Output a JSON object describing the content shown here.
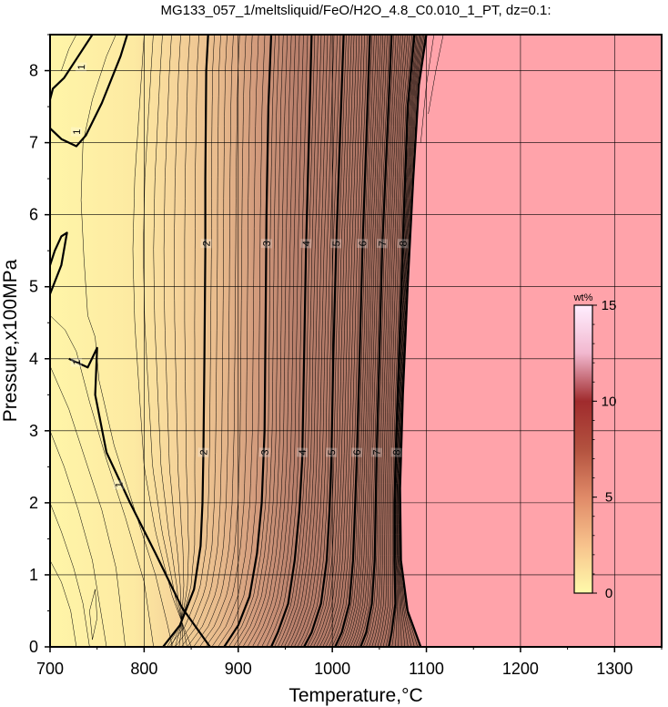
{
  "chart_data": {
    "type": "contour",
    "title": "MG133_057_1/meltsliquid/FeO/H2O_4.8_C0.010_1_PT, dz=0.1:",
    "xlabel": "Temperature,°C",
    "ylabel": "Pressure,x100MPa",
    "xlim": [
      700,
      1350
    ],
    "ylim": [
      0,
      8.5
    ],
    "x_ticks": [
      700,
      800,
      900,
      1000,
      1100,
      1200,
      1300
    ],
    "y_ticks": [
      0,
      1,
      2,
      3,
      4,
      5,
      6,
      7,
      8
    ],
    "grid": true,
    "no_melt_region_color": "#ffa3aa",
    "colorbar": {
      "unit": "wt%",
      "range": [
        0,
        15
      ],
      "ticks": [
        0,
        5,
        10,
        15
      ],
      "colors": [
        "#fffbab",
        "#f7c28c",
        "#e08a68",
        "#b3523f",
        "#a02b2d",
        "#f2b8cf",
        "#ffeeff"
      ]
    },
    "contour_interval": 0.1,
    "labeled_contours": [
      {
        "label": "1",
        "points": [
          [
            745,
            8.5
          ],
          [
            730,
            8.2
          ],
          [
            715,
            7.9
          ],
          [
            703,
            7.75
          ],
          [
            700,
            7.6
          ],
          [
            700,
            7.2
          ],
          [
            712,
            7.05
          ],
          [
            728,
            6.95
          ],
          [
            738,
            7.1
          ],
          [
            755,
            7.55
          ],
          [
            775,
            8.2
          ],
          [
            782,
            8.5
          ]
        ]
      },
      {
        "label": "1",
        "points": [
          [
            700,
            4.9
          ],
          [
            712,
            5.3
          ],
          [
            718,
            5.75
          ],
          [
            712,
            5.7
          ],
          [
            705,
            5.5
          ],
          [
            700,
            5.3
          ]
        ]
      },
      {
        "label": "1",
        "points": [
          [
            720,
            4.0
          ],
          [
            740,
            3.88
          ],
          [
            750,
            4.15
          ],
          [
            748,
            3.5
          ],
          [
            760,
            2.7
          ],
          [
            785,
            2.0
          ],
          [
            812,
            1.3
          ],
          [
            840,
            0.55
          ],
          [
            870,
            0.0
          ]
        ]
      },
      {
        "label": "2",
        "points": [
          [
            868,
            8.5
          ],
          [
            866,
            8.0
          ],
          [
            865,
            6.5
          ],
          [
            865,
            5.5
          ],
          [
            864,
            4.0
          ],
          [
            863,
            2.7
          ],
          [
            862,
            2.0
          ],
          [
            860,
            1.4
          ],
          [
            853,
            0.8
          ],
          [
            838,
            0.3
          ],
          [
            820,
            0.0
          ]
        ]
      },
      {
        "label": "3",
        "points": [
          [
            935,
            8.5
          ],
          [
            932,
            7.5
          ],
          [
            930,
            6.0
          ],
          [
            929,
            4.5
          ],
          [
            928,
            3.0
          ],
          [
            925,
            2.0
          ],
          [
            920,
            1.3
          ],
          [
            912,
            0.7
          ],
          [
            900,
            0.3
          ],
          [
            885,
            0.0
          ]
        ]
      },
      {
        "label": "4",
        "points": [
          [
            978,
            8.5
          ],
          [
            975,
            7.0
          ],
          [
            972,
            5.5
          ],
          [
            970,
            4.0
          ],
          [
            968,
            2.6
          ],
          [
            965,
            1.9
          ],
          [
            960,
            1.2
          ],
          [
            953,
            0.6
          ],
          [
            942,
            0.2
          ],
          [
            935,
            0.0
          ]
        ]
      },
      {
        "label": "5",
        "points": [
          [
            1012,
            8.5
          ],
          [
            1008,
            7.0
          ],
          [
            1004,
            5.5
          ],
          [
            1001,
            4.0
          ],
          [
            999,
            2.6
          ],
          [
            997,
            1.9
          ],
          [
            994,
            1.2
          ],
          [
            988,
            0.6
          ],
          [
            978,
            0.2
          ],
          [
            970,
            0.0
          ]
        ]
      },
      {
        "label": "6",
        "points": [
          [
            1040,
            8.5
          ],
          [
            1036,
            7.0
          ],
          [
            1032,
            5.5
          ],
          [
            1029,
            4.0
          ],
          [
            1026,
            2.6
          ],
          [
            1024,
            1.9
          ],
          [
            1022,
            1.2
          ],
          [
            1018,
            0.6
          ],
          [
            1010,
            0.2
          ],
          [
            1003,
            0.0
          ]
        ]
      },
      {
        "label": "7",
        "points": [
          [
            1063,
            8.5
          ],
          [
            1058,
            7.0
          ],
          [
            1053,
            5.5
          ],
          [
            1050,
            4.0
          ],
          [
            1047,
            2.6
          ],
          [
            1046,
            1.9
          ],
          [
            1045,
            1.2
          ],
          [
            1042,
            0.6
          ],
          [
            1036,
            0.2
          ],
          [
            1030,
            0.0
          ]
        ]
      },
      {
        "label": "8",
        "points": [
          [
            1087,
            8.5
          ],
          [
            1080,
            7.5
          ],
          [
            1076,
            6.0
          ],
          [
            1072,
            4.5
          ],
          [
            1068,
            3.0
          ],
          [
            1066,
            2.0
          ],
          [
            1066,
            1.2
          ],
          [
            1067,
            0.6
          ],
          [
            1063,
            0.2
          ],
          [
            1060,
            0.0
          ]
        ]
      },
      {
        "label": "",
        "points": [
          [
            1100,
            8.5
          ],
          [
            1092,
            7.8
          ],
          [
            1086,
            6.5
          ],
          [
            1080,
            5.0
          ],
          [
            1075,
            3.5
          ],
          [
            1072,
            2.2
          ],
          [
            1073,
            1.2
          ],
          [
            1080,
            0.5
          ],
          [
            1094,
            0.0
          ]
        ]
      }
    ],
    "contour_label_positions": [
      {
        "label": "1",
        "x": 733,
        "y": 8.05
      },
      {
        "label": "1",
        "x": 728,
        "y": 7.15
      },
      {
        "label": "1",
        "x": 728,
        "y": 3.95
      },
      {
        "label": "1",
        "x": 773,
        "y": 2.25
      },
      {
        "label": "2",
        "x": 866,
        "y": 5.6
      },
      {
        "label": "2",
        "x": 863,
        "y": 2.7
      },
      {
        "label": "3",
        "x": 930,
        "y": 5.6
      },
      {
        "label": "3",
        "x": 928,
        "y": 2.7
      },
      {
        "label": "4",
        "x": 972,
        "y": 5.6
      },
      {
        "label": "4",
        "x": 968,
        "y": 2.7
      },
      {
        "label": "5",
        "x": 1004,
        "y": 5.6
      },
      {
        "label": "5",
        "x": 999,
        "y": 2.7
      },
      {
        "label": "6",
        "x": 1032,
        "y": 5.6
      },
      {
        "label": "6",
        "x": 1026,
        "y": 2.7
      },
      {
        "label": "7",
        "x": 1053,
        "y": 5.6
      },
      {
        "label": "7",
        "x": 1047,
        "y": 2.7
      },
      {
        "label": "8",
        "x": 1075,
        "y": 5.6
      },
      {
        "label": "8",
        "x": 1068,
        "y": 2.7
      }
    ]
  }
}
